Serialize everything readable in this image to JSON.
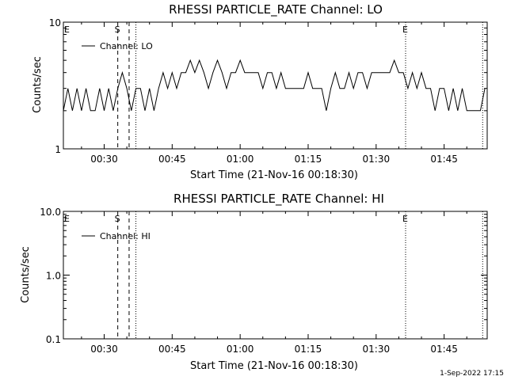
{
  "footer": {
    "timestamp": "1-Sep-2022 17:15"
  },
  "chart_data": [
    {
      "type": "line",
      "title": "RHESSI PARTICLE_RATE Channel: LO",
      "xlabel": "Start Time (21-Nov-16 00:18:30)",
      "ylabel": "Counts/sec",
      "x_range": [
        "00:21:00",
        "01:54:30"
      ],
      "ylim": [
        1,
        10
      ],
      "y_scale": "log",
      "x_ticks": [
        "00:30",
        "00:45",
        "01:00",
        "01:15",
        "01:30",
        "01:45"
      ],
      "y_ticks": [
        "1",
        "10"
      ],
      "legend": {
        "entries": [
          "Channel: LO"
        ],
        "placement": "top-left"
      },
      "grid": false,
      "series": [
        {
          "name": "Channel: LO",
          "x": [
            "00:21:00",
            "00:22:00",
            "00:23:00",
            "00:24:00",
            "00:25:00",
            "00:26:00",
            "00:27:00",
            "00:28:00",
            "00:29:00",
            "00:30:00",
            "00:31:00",
            "00:32:00",
            "00:33:00",
            "00:34:00",
            "00:35:00",
            "00:36:00",
            "00:37:00",
            "00:38:00",
            "00:39:00",
            "00:40:00",
            "00:41:00",
            "00:42:00",
            "00:43:00",
            "00:44:00",
            "00:45:00",
            "00:46:00",
            "00:47:00",
            "00:48:00",
            "00:49:00",
            "00:50:00",
            "00:51:00",
            "00:52:00",
            "00:53:00",
            "00:54:00",
            "00:55:00",
            "00:56:00",
            "00:57:00",
            "00:58:00",
            "00:59:00",
            "01:00:00",
            "01:01:00",
            "01:02:00",
            "01:03:00",
            "01:04:00",
            "01:05:00",
            "01:06:00",
            "01:07:00",
            "01:08:00",
            "01:09:00",
            "01:10:00",
            "01:11:00",
            "01:12:00",
            "01:13:00",
            "01:14:00",
            "01:15:00",
            "01:16:00",
            "01:17:00",
            "01:18:00",
            "01:19:00",
            "01:20:00",
            "01:21:00",
            "01:22:00",
            "01:23:00",
            "01:24:00",
            "01:25:00",
            "01:26:00",
            "01:27:00",
            "01:28:00",
            "01:29:00",
            "01:30:00",
            "01:31:00",
            "01:32:00",
            "01:33:00",
            "01:34:00",
            "01:35:00",
            "01:36:00",
            "01:37:00",
            "01:38:00",
            "01:39:00",
            "01:40:00",
            "01:41:00",
            "01:42:00",
            "01:43:00",
            "01:44:00",
            "01:45:00",
            "01:46:00",
            "01:47:00",
            "01:48:00",
            "01:49:00",
            "01:50:00",
            "01:51:00",
            "01:52:00",
            "01:53:00",
            "01:54:00"
          ],
          "y": [
            2,
            3,
            2,
            3,
            2,
            3,
            2,
            2,
            3,
            2,
            3,
            2,
            3,
            4,
            3,
            2,
            3,
            3,
            2,
            3,
            2,
            3,
            4,
            3,
            4,
            3,
            4,
            4,
            5,
            4,
            5,
            4,
            3,
            4,
            5,
            4,
            3,
            4,
            4,
            5,
            4,
            4,
            4,
            4,
            3,
            4,
            4,
            3,
            4,
            3,
            3,
            3,
            3,
            3,
            4,
            3,
            3,
            3,
            2,
            3,
            4,
            3,
            3,
            4,
            3,
            4,
            4,
            3,
            4,
            4,
            4,
            4,
            4,
            5,
            4,
            4,
            3,
            4,
            3,
            4,
            3,
            3,
            2,
            3,
            3,
            2,
            3,
            2,
            3,
            2,
            2,
            2,
            2,
            3
          ]
        }
      ],
      "annotations": [
        {
          "label": "E",
          "time": "00:18:30",
          "style": "dotted"
        },
        {
          "label": "S",
          "time": "00:33:00",
          "style": "dashed"
        },
        {
          "label": "",
          "time": "00:35:30",
          "style": "dashed"
        },
        {
          "label": "",
          "time": "00:37:00",
          "style": "dotted"
        },
        {
          "label": "E",
          "time": "01:36:30",
          "style": "dotted"
        },
        {
          "label": "",
          "time": "01:53:30",
          "style": "dotted"
        }
      ]
    },
    {
      "type": "line",
      "title": "RHESSI PARTICLE_RATE Channel: HI",
      "xlabel": "Start Time (21-Nov-16 00:18:30)",
      "ylabel": "Counts/sec",
      "x_range": [
        "00:21:00",
        "01:54:30"
      ],
      "ylim": [
        0.1,
        10
      ],
      "y_scale": "log",
      "x_ticks": [
        "00:30",
        "00:45",
        "01:00",
        "01:15",
        "01:30",
        "01:45"
      ],
      "y_ticks": [
        "0.1",
        "1.0",
        "10.0"
      ],
      "legend": {
        "entries": [
          "Channel: HI"
        ],
        "placement": "top-left"
      },
      "grid": false,
      "series": [
        {
          "name": "Channel: HI",
          "x": [],
          "y": []
        }
      ],
      "annotations": [
        {
          "label": "E",
          "time": "00:18:30",
          "style": "dotted"
        },
        {
          "label": "S",
          "time": "00:33:00",
          "style": "dashed"
        },
        {
          "label": "",
          "time": "00:35:30",
          "style": "dashed"
        },
        {
          "label": "",
          "time": "00:37:00",
          "style": "dotted"
        },
        {
          "label": "E",
          "time": "01:36:30",
          "style": "dotted"
        },
        {
          "label": "",
          "time": "01:53:30",
          "style": "dotted"
        }
      ]
    }
  ]
}
